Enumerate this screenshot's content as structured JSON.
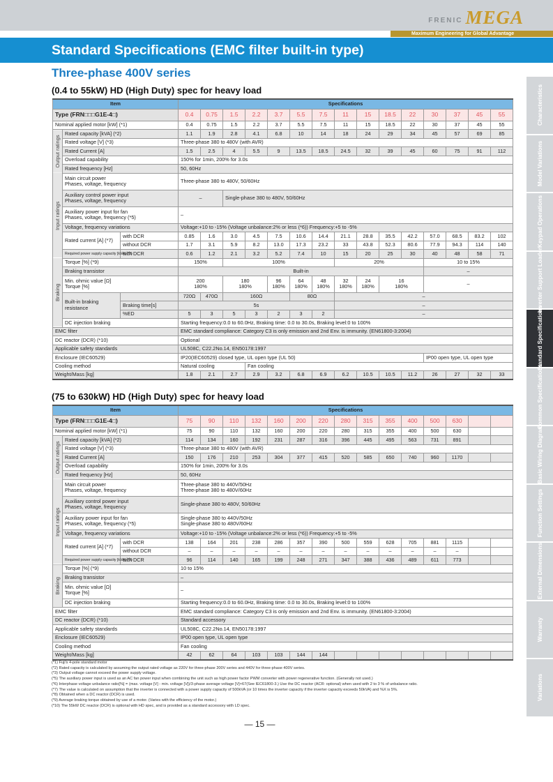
{
  "brand": {
    "logo_left": "FRENIC",
    "logo_right": "MEGA",
    "tagline": "Maximum Engineering for Global Advantage",
    "colors": {
      "blue": "#168fd1",
      "gold": "#b9962f"
    }
  },
  "page": {
    "title": "Standard Specifications (EMC filter built-in type)",
    "series": "Three-phase 400V series",
    "number": "— 15 —"
  },
  "tabs": [
    {
      "label": "Characteristics",
      "active": false
    },
    {
      "label": "Model Variations",
      "active": false
    },
    {
      "label": "Keypad Operations",
      "active": false
    },
    {
      "label": "Inverter Support Loader",
      "active": false
    },
    {
      "label": "Standard Specifications",
      "active": true
    },
    {
      "label": "Common Specifications",
      "active": false
    },
    {
      "label": "Basic Wiring Diagram",
      "active": false
    },
    {
      "label": "Function Settings",
      "active": false
    },
    {
      "label": "External Dimensions",
      "active": false
    },
    {
      "label": "Warranty",
      "active": false
    },
    {
      "label": "Variations",
      "active": false
    }
  ],
  "tables": [
    {
      "heading": "(0.4 to 55kW)  HD (High Duty) spec for heavy load",
      "header": {
        "item": "Item",
        "specs": "Specifications"
      },
      "rows": [
        {
          "kind": "type",
          "label": "Type (FRN□□□G1E-4□)",
          "cells": [
            "0.4",
            "0.75",
            "1.5",
            "2.2",
            "3.7",
            "5.5",
            "7.5",
            "11",
            "15",
            "18.5",
            "22",
            "30",
            "37",
            "45",
            "55"
          ]
        },
        {
          "label": "Nominal applied motor [kW] (*1)",
          "cells": [
            "0.4",
            "0.75",
            "1.5",
            "2.2",
            "3.7",
            "5.5",
            "7.5",
            "11",
            "15",
            "18.5",
            "22",
            "30",
            "37",
            "45",
            "55"
          ]
        },
        {
          "group": "Output ratings",
          "shade": 1,
          "label": "Rated capacity [kVA] (*2)",
          "cells": [
            "1.1",
            "1.9",
            "2.8",
            "4.1",
            "6.8",
            "10",
            "14",
            "18",
            "24",
            "29",
            "34",
            "45",
            "57",
            "69",
            "85"
          ]
        },
        {
          "group": "Output ratings",
          "label": "Rated voltage [V] (*3)",
          "cells": [
            [
              "Three-phase 380 to 480V (with AVR)",
              15
            ]
          ]
        },
        {
          "group": "Output ratings",
          "shade": 1,
          "label": "Rated Current [A]",
          "cells": [
            "1.5",
            "2.5",
            "4",
            "5.5",
            "9",
            "13.5",
            "18.5",
            "24.5",
            "32",
            "39",
            "45",
            "60",
            "75",
            "91",
            "112"
          ]
        },
        {
          "group": "Output ratings",
          "label": "Overload capability",
          "cells": [
            [
              "150% for 1min, 200% for 3.0s",
              15
            ]
          ]
        },
        {
          "group": "Output ratings",
          "shade": 1,
          "label": "Rated frequency [Hz]",
          "cells": [
            [
              "50, 60Hz",
              15
            ]
          ]
        },
        {
          "group": "Input ratings",
          "tall": 1,
          "label": "Main circuit power\nPhases, voltage, frequency",
          "cells": [
            [
              "Three-phase 380 to 480V, 50/60Hz",
              15
            ]
          ]
        },
        {
          "group": "Input ratings",
          "tall": 1,
          "shade": 1,
          "label": "Auxiliary control power input\nPhases, voltage, frequency",
          "cells": [
            [
              "–",
              2
            ],
            [
              "Single-phase 380 to 480V, 50/60Hz",
              13
            ]
          ]
        },
        {
          "group": "Input ratings",
          "tall": 1,
          "label": "Auxiliary power input for fan\nPhases, voltage, frequency (*5)",
          "cells": [
            [
              "–",
              15
            ]
          ]
        },
        {
          "group": "Input ratings",
          "shade": 1,
          "label": "Voltage, frequency variations",
          "cells": [
            [
              "Voltage:+10 to -15% (Voltage unbalance:2% or less (*6))  Frequency:+5 to -5%",
              15
            ]
          ]
        },
        {
          "group": "Input ratings",
          "label": "Rated current [A] (*7)",
          "sub": "with DCR",
          "cells": [
            "0.85",
            "1.6",
            "3.0",
            "4.5",
            "7.5",
            "10.6",
            "14.4",
            "21.1",
            "28.8",
            "35.5",
            "42.2",
            "57.0",
            "68.5",
            "83.2",
            "102"
          ]
        },
        {
          "group": "Input ratings",
          "label": null,
          "sub": "without DCR",
          "cells": [
            "1.7",
            "3.1",
            "5.9",
            "8.2",
            "13.0",
            "17.3",
            "23.2",
            "33",
            "43.8",
            "52.3",
            "80.6",
            "77.9",
            "94.3",
            "114",
            "140"
          ]
        },
        {
          "group": "Input ratings",
          "shade": 1,
          "small": 1,
          "label": "Required power supply capacity [kVA] (*8)",
          "sub": "with DCR",
          "cells": [
            "0.6",
            "1.2",
            "2.1",
            "3.2",
            "5.2",
            "7.4",
            "10",
            "15",
            "20",
            "25",
            "30",
            "40",
            "48",
            "58",
            "71"
          ]
        },
        {
          "group": "Braking",
          "label": "Torque [%] (*9)",
          "cells": [
            [
              "150%",
              2
            ],
            [
              "100%",
              5
            ],
            [
              "20%",
              4
            ],
            [
              "10 to 15%",
              4
            ]
          ]
        },
        {
          "group": "Braking",
          "shade": 1,
          "label": "Braking transistor",
          "cells": [
            [
              "Built-in",
              11
            ],
            [
              "–",
              4
            ]
          ]
        },
        {
          "group": "Braking",
          "tall": 1,
          "label": "Min. ohmic value [Ω]\nTorque [%]",
          "cells": [
            [
              "200\n180%",
              2
            ],
            [
              "180\n180%",
              2
            ],
            "96\n180%",
            "64\n180%",
            "48\n180%",
            "32\n180%",
            "24\n180%",
            [
              "16\n180%",
              2
            ],
            [
              "–",
              4
            ]
          ]
        },
        {
          "group": "Braking",
          "shade": 1,
          "label": "Built-in braking resistance",
          "sub": "",
          "cells": [
            "720Ω",
            "470Ω",
            [
              "160Ω",
              3
            ],
            [
              "80Ω",
              2
            ],
            [
              "–",
              8
            ]
          ]
        },
        {
          "group": "Braking",
          "shade": 1,
          "label": null,
          "sub": "Braking time[s]",
          "cells": [
            [
              "5s",
              7
            ],
            [
              "–",
              8
            ]
          ]
        },
        {
          "group": "Braking",
          "shade": 1,
          "label": null,
          "sub": "%ED",
          "cells": [
            "5",
            "3",
            "5",
            "3",
            "2",
            "3",
            "2",
            [
              "–",
              8
            ]
          ]
        },
        {
          "group": "Braking",
          "label": "DC injection braking",
          "cells": [
            [
              "Starting frequency:0.0 to 60.0Hz, Braking time: 0.0 to 30.0s, Braking level:0 to 100%",
              15
            ]
          ]
        },
        {
          "shade": 1,
          "label": "EMC filter",
          "cells": [
            [
              "EMC standard compliance: Category C3 is only emission and 2nd Env. is immunity. (EN61800-3:2004)",
              15
            ]
          ]
        },
        {
          "label": "DC reactor (DCR) (*10)",
          "cells": [
            [
              "Optional",
              15
            ]
          ]
        },
        {
          "shade": 1,
          "label": "Applicable safety standards",
          "cells": [
            [
              "UL508C, C22.2No.14, EN50178:1997",
              15
            ]
          ]
        },
        {
          "label": "Enclosure (IEC60529)",
          "cells": [
            [
              "IP20(IEC60529) closed type, UL open type (UL 50)",
              11
            ],
            [
              "IP00 open type, UL open type",
              4
            ]
          ]
        },
        {
          "label": "Cooling method",
          "cells": [
            [
              "Natural cooling",
              3
            ],
            [
              "Fan cooling",
              12
            ]
          ]
        },
        {
          "shade": 1,
          "label": "Weight/Mass [kg]",
          "cells": [
            "1.8",
            "2.1",
            "2.7",
            "2.9",
            "3.2",
            "6.8",
            "6.9",
            "6.2",
            "10.5",
            "10.5",
            "11.2",
            "26",
            "27",
            "32",
            "33"
          ]
        }
      ]
    },
    {
      "heading": "(75 to 630kW)  HD (High Duty) spec for heavy load",
      "header": {
        "item": "Item",
        "specs": "Specifications"
      },
      "rows": [
        {
          "kind": "type",
          "label": "Type (FRN□□□G1E-4□)",
          "cells": [
            "75",
            "90",
            "110",
            "132",
            "160",
            "200",
            "220",
            "280",
            "315",
            "355",
            "400",
            "500",
            "630",
            "",
            ""
          ]
        },
        {
          "label": "Nominal applied motor [kW] (*1)",
          "cells": [
            "75",
            "90",
            "110",
            "132",
            "160",
            "200",
            "220",
            "280",
            "315",
            "355",
            "400",
            "500",
            "630",
            "",
            ""
          ]
        },
        {
          "group": "Output ratings",
          "shade": 1,
          "label": "Rated capacity [kVA] (*2)",
          "cells": [
            "114",
            "134",
            "160",
            "192",
            "231",
            "287",
            "316",
            "396",
            "445",
            "495",
            "563",
            "731",
            "891",
            "",
            ""
          ]
        },
        {
          "group": "Output ratings",
          "label": "Rated voltage [V] (*3)",
          "cells": [
            [
              "Three-phase 380 to 480V (with AVR)",
              15
            ]
          ]
        },
        {
          "group": "Output ratings",
          "shade": 1,
          "label": "Rated Current [A]",
          "cells": [
            "150",
            "176",
            "210",
            "253",
            "304",
            "377",
            "415",
            "520",
            "585",
            "650",
            "740",
            "960",
            "1170",
            "",
            ""
          ]
        },
        {
          "group": "Output ratings",
          "label": "Overload capability",
          "cells": [
            [
              "150% for 1min, 200% for 3.0s",
              15
            ]
          ]
        },
        {
          "group": "Output ratings",
          "shade": 1,
          "label": "Rated frequency [Hz]",
          "cells": [
            [
              "50, 60Hz",
              15
            ]
          ]
        },
        {
          "group": "Input ratings",
          "tall": 1,
          "label": "Main circuit power\nPhases, voltage, frequency",
          "cells": [
            [
              "Three-phase 380 to 440V/50Hz\nThree-phase 380 to 480V/60Hz",
              15
            ]
          ]
        },
        {
          "group": "Input ratings",
          "tall": 1,
          "shade": 1,
          "label": "Auxiliary control power input\nPhases, voltage, frequency",
          "cells": [
            [
              "Single-phase 380 to 480V, 50/60Hz",
              15
            ]
          ]
        },
        {
          "group": "Input ratings",
          "tall": 1,
          "label": "Auxiliary power input for fan\nPhases, voltage, frequency (*5)",
          "cells": [
            [
              "Single-phase 380 to 440V/50Hz\nSingle-phase 380 to 480V/60Hz",
              15
            ]
          ]
        },
        {
          "group": "Input ratings",
          "shade": 1,
          "label": "Voltage, frequency variations",
          "cells": [
            [
              "Voltage:+10 to -15% (Voltage unbalance:2% or less (*6))  Frequency:+5 to -5%",
              15
            ]
          ]
        },
        {
          "group": "Input ratings",
          "label": "Rated current [A] (*7)",
          "sub": "with DCR",
          "cells": [
            "138",
            "164",
            "201",
            "238",
            "286",
            "357",
            "390",
            "500",
            "559",
            "628",
            "705",
            "881",
            "1115",
            "",
            ""
          ]
        },
        {
          "group": "Input ratings",
          "label": null,
          "sub": "without DCR",
          "cells": [
            "–",
            "–",
            "–",
            "–",
            "–",
            "–",
            "–",
            "–",
            "–",
            "–",
            "–",
            "–",
            "–",
            "",
            ""
          ]
        },
        {
          "group": "Input ratings",
          "shade": 1,
          "small": 1,
          "label": "Required power supply capacity [kVA] (*8)",
          "sub": "with DCR",
          "cells": [
            "96",
            "114",
            "140",
            "165",
            "199",
            "248",
            "271",
            "347",
            "388",
            "436",
            "489",
            "611",
            "773",
            "",
            ""
          ]
        },
        {
          "group": "Braking",
          "label": "Torque [%] (*9)",
          "cells": [
            [
              "10 to 15%",
              15
            ]
          ]
        },
        {
          "group": "Braking",
          "shade": 1,
          "label": "Braking transistor",
          "cells": [
            [
              "–",
              15
            ]
          ]
        },
        {
          "group": "Braking",
          "tall": 1,
          "label": "Min. ohmic value [Ω]\nTorque [%]",
          "cells": [
            [
              "–",
              15
            ]
          ]
        },
        {
          "group": "Braking",
          "label": "DC injection braking",
          "cells": [
            [
              "Starting frequency:0.0 to 60.0Hz, Braking time: 0.0 to 30.0s, Braking level:0 to 100%",
              15
            ]
          ]
        },
        {
          "label": "EMC filter",
          "cells": [
            [
              "EMC standard compliance: Category C3 is only emission and 2nd Env. is immunity. (EN61800-3:2004)",
              15
            ]
          ]
        },
        {
          "shade": 1,
          "label": "DC reactor (DCR) (*10)",
          "cells": [
            [
              "Standard accessory",
              15
            ]
          ]
        },
        {
          "label": "Applicable safety standards",
          "cells": [
            [
              "UL508C, C22.2No.14, EN50178:1997",
              15
            ]
          ]
        },
        {
          "shade": 1,
          "label": "Enclosure (IEC60529)",
          "cells": [
            [
              "IP00 open type, UL open type",
              15
            ]
          ]
        },
        {
          "label": "Cooling method",
          "cells": [
            [
              "Fan cooling",
              15
            ]
          ]
        },
        {
          "shade": 1,
          "label": "Weight/Mass [kg]",
          "cells": [
            "42",
            "62",
            "64",
            "103",
            "103",
            "144",
            "144",
            "",
            "",
            "",
            "",
            "",
            "",
            "",
            ""
          ]
        }
      ]
    }
  ],
  "notes": [
    "(*1) Fuji's 4-pole standard motor",
    "(*2) Rated capacity is calculated by assuming the output rated voltage as 220V for three-phase 200V series and 440V for three-phase 400V series.",
    "(*3) Output voltage cannot exceed the power supply voltage.",
    "(*5) The auxiliary power input is used as an AC fan power input when combining the unit such as high power factor PWM converter with power regenerative function. (Generally not used.)",
    "(*6) Interphase voltage unbalance ratio[%] = (max. voltage [V] - min. voltage [V])/3-phase average voltage [V]×67(See IEC61800-3.) Use the DC reactor (ACR: optional) when used with 2 to 3 % of unbalance ratio.",
    "(*7) The value is calculated on assumption that the inverter is connected with a power supply capacity of 500kVA (or 10 times the inverter capacity if the inverter capacity exceeds 50kVA) and %X is 5%.",
    "(*8) Obtained when a DC reactor (DCR) is used.",
    "(*9) Average braking torque obtained by use of a motor. (Varies with the efficiency of the motor.)",
    "(*10) The 55kW DC reactor (DCR) is optional with HD spec, and is provided as a standard accessory with LD spec."
  ]
}
